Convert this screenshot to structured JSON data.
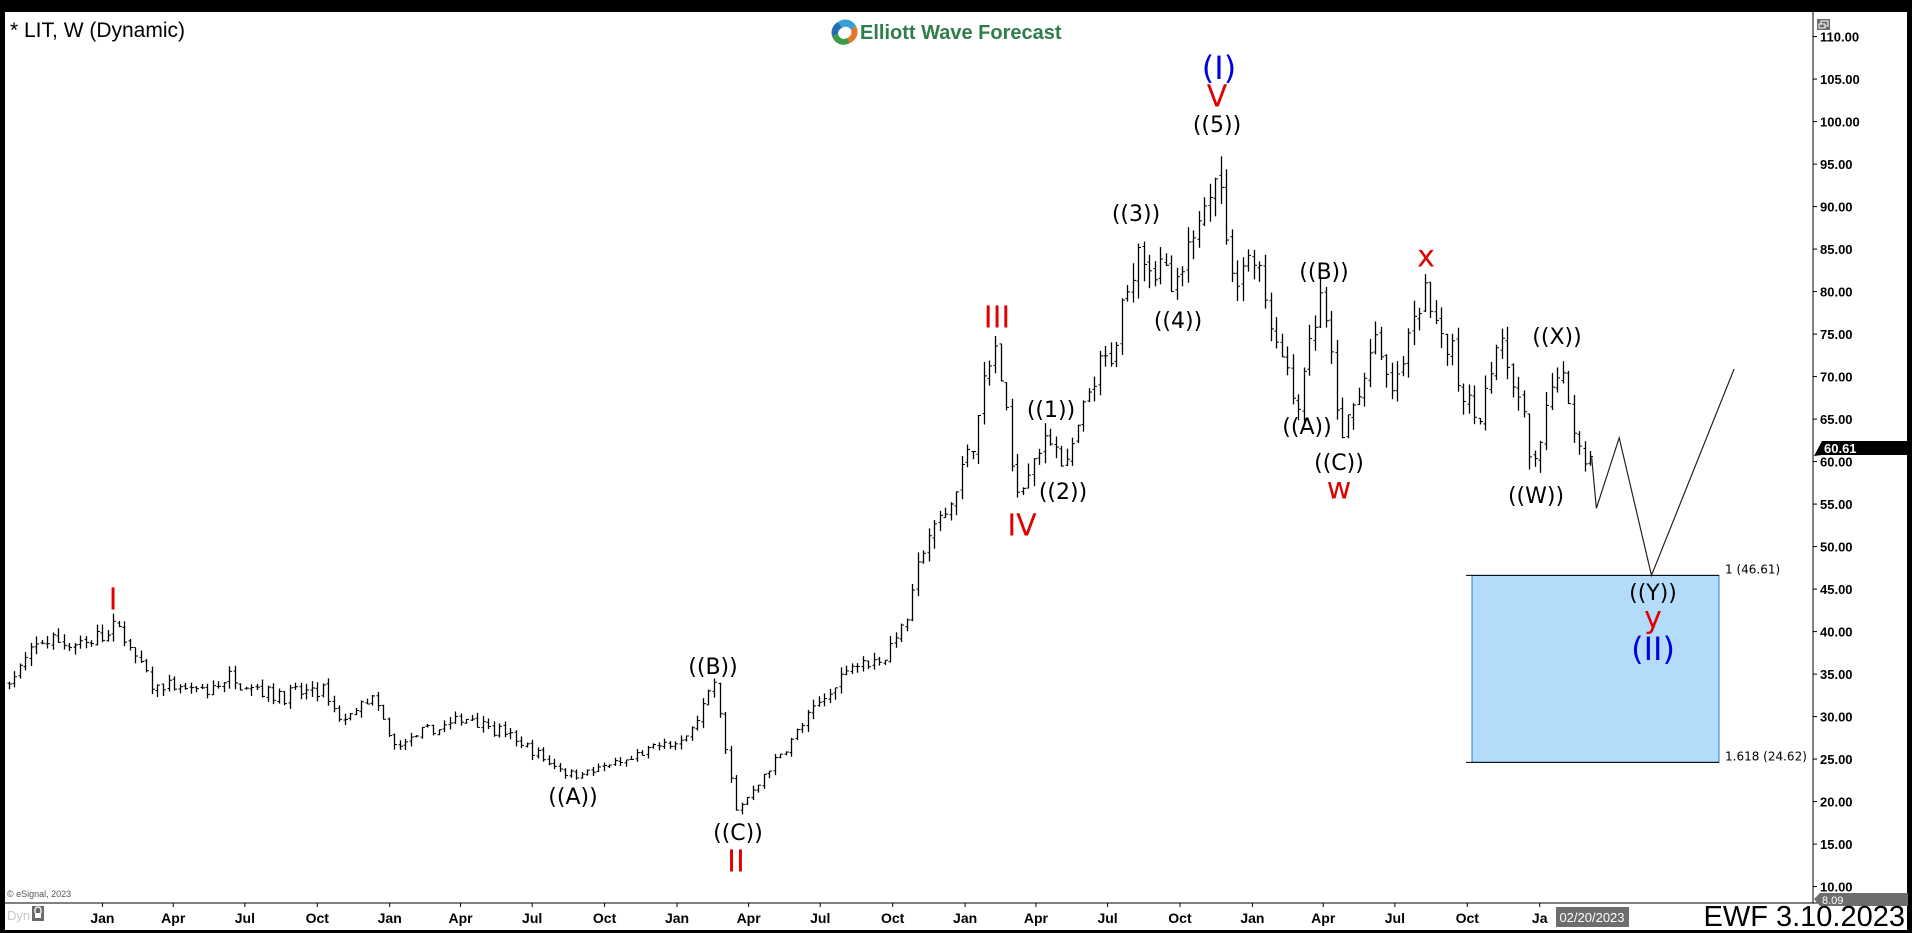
{
  "header": {
    "title": "* LIT, W (Dynamic)",
    "logo_text": "Elliott Wave Forecast"
  },
  "footer": {
    "copyright": "© eSignal, 2023",
    "dyn_label": "Dyn",
    "stamp": "EWF 3.10.2023",
    "cursor_date": "02/20/2023"
  },
  "price_tags": {
    "last": "60.61",
    "low": "8.09"
  },
  "colors": {
    "wave_black": "#000000",
    "wave_red": "#e00000",
    "wave_blue": "#0000e0",
    "target_box": "#b3dcfb",
    "target_box_border": "#2b7fc4",
    "last_price_tag": "#000000",
    "low_price_tag": "#6d6d6d"
  },
  "chart_data": {
    "type": "ohlc",
    "symbol": "LIT",
    "interval": "Weekly",
    "ylim": [
      8,
      112
    ],
    "y_ticks": [
      "110.00",
      "105.00",
      "100.00",
      "95.00",
      "90.00",
      "85.00",
      "80.00",
      "75.00",
      "70.00",
      "65.00",
      "60.00",
      "55.00",
      "50.00",
      "45.00",
      "40.00",
      "35.00",
      "30.00",
      "25.00",
      "20.00",
      "15.00",
      "10.00"
    ],
    "x_ticks": [
      "Jan",
      "Apr",
      "Jul",
      "Oct",
      "Jan",
      "Apr",
      "Jul",
      "Oct",
      "Jan",
      "Apr",
      "Jul",
      "Oct",
      "Jan",
      "Apr",
      "Jul",
      "Oct",
      "Jan",
      "Apr",
      "Jul",
      "Oct",
      "Ja"
    ],
    "x_tick_dates": [
      "2018-01-01",
      "2018-04-01",
      "2018-07-01",
      "2018-10-01",
      "2019-01-01",
      "2019-04-01",
      "2019-07-01",
      "2019-10-01",
      "2020-01-01",
      "2020-04-01",
      "2020-07-01",
      "2020-10-01",
      "2021-01-01",
      "2021-04-01",
      "2021-07-01",
      "2021-10-01",
      "2022-01-01",
      "2022-04-01",
      "2022-07-01",
      "2022-10-01",
      "2023-01-01"
    ],
    "price_path": [
      [
        "2017-09-04",
        34
      ],
      [
        "2017-10-16",
        39
      ],
      [
        "2017-12-11",
        38.5
      ],
      [
        "2018-01-22",
        40.5
      ],
      [
        "2018-03-05",
        33.5
      ],
      [
        "2018-05-14",
        33
      ],
      [
        "2018-06-11",
        34.5
      ],
      [
        "2018-08-13",
        32.5
      ],
      [
        "2018-10-08",
        33
      ],
      [
        "2018-10-29",
        29.5
      ],
      [
        "2018-12-10",
        32
      ],
      [
        "2019-01-07",
        26.5
      ],
      [
        "2019-02-25",
        28.5
      ],
      [
        "2019-04-15",
        30
      ],
      [
        "2019-06-03",
        27.5
      ],
      [
        "2019-07-15",
        25
      ],
      [
        "2019-08-19",
        23.2
      ],
      [
        "2019-10-28",
        24.5
      ],
      [
        "2019-12-16",
        27
      ],
      [
        "2020-01-06",
        26.5
      ],
      [
        "2020-02-17",
        33.5
      ],
      [
        "2020-03-16",
        18.8
      ],
      [
        "2020-06-08",
        29
      ],
      [
        "2020-07-13",
        33
      ],
      [
        "2020-08-10",
        36.5
      ],
      [
        "2020-09-21",
        37
      ],
      [
        "2020-10-19",
        42
      ],
      [
        "2020-11-09",
        50
      ],
      [
        "2020-12-14",
        55
      ],
      [
        "2021-01-11",
        63
      ],
      [
        "2021-02-08",
        73.5
      ],
      [
        "2021-03-08",
        56.5
      ],
      [
        "2021-04-19",
        63.5
      ],
      [
        "2021-05-10",
        59
      ],
      [
        "2021-06-14",
        70
      ],
      [
        "2021-07-05",
        72
      ],
      [
        "2021-08-09",
        86
      ],
      [
        "2021-09-27",
        79.5
      ],
      [
        "2021-11-15",
        95.5
      ],
      [
        "2021-12-06",
        82
      ],
      [
        "2022-01-03",
        84.5
      ],
      [
        "2022-02-07",
        72
      ],
      [
        "2022-02-28",
        67
      ],
      [
        "2022-03-28",
        79.5
      ],
      [
        "2022-04-25",
        62.5
      ],
      [
        "2022-06-06",
        74
      ],
      [
        "2022-06-27",
        68
      ],
      [
        "2022-08-08",
        81
      ],
      [
        "2022-09-26",
        68
      ],
      [
        "2022-10-17",
        64.5
      ],
      [
        "2022-11-07",
        74
      ],
      [
        "2022-12-05",
        67
      ],
      [
        "2022-12-27",
        58.5
      ],
      [
        "2023-01-23",
        72
      ],
      [
        "2023-02-20",
        62
      ],
      [
        "2023-03-06",
        60.61
      ]
    ],
    "last_price": 60.61,
    "projection": [
      [
        "2023-03-08",
        60.5
      ],
      [
        "2023-03-14",
        54.5
      ],
      [
        "2023-04-12",
        62.8
      ],
      [
        "2023-05-23",
        46.61
      ],
      [
        "2023-09-05",
        70.9
      ]
    ],
    "target_zone": {
      "from_date": "2023-01-01",
      "to_date": "2023-09-20",
      "top": 46.61,
      "bottom": 24.62,
      "top_label": "1 (46.61)",
      "bottom_label": "1.618 (24.62)"
    },
    "wave_labels": [
      {
        "text": "I",
        "color": "red"
      },
      {
        "text": "((A))",
        "color": "black"
      },
      {
        "text": "((B))",
        "color": "black"
      },
      {
        "text": "((C))",
        "color": "black"
      },
      {
        "text": "II",
        "color": "red"
      },
      {
        "text": "III",
        "color": "red"
      },
      {
        "text": "IV",
        "color": "red"
      },
      {
        "text": "((1))",
        "color": "black"
      },
      {
        "text": "((2))",
        "color": "black"
      },
      {
        "text": "((3))",
        "color": "black"
      },
      {
        "text": "((4))",
        "color": "black"
      },
      {
        "text": "((5))",
        "color": "black"
      },
      {
        "text": "V",
        "color": "red"
      },
      {
        "text": "(I)",
        "color": "blue"
      },
      {
        "text": "((A))",
        "color": "black"
      },
      {
        "text": "((B))",
        "color": "black"
      },
      {
        "text": "((C))",
        "color": "black"
      },
      {
        "text": "w",
        "color": "red"
      },
      {
        "text": "x",
        "color": "red"
      },
      {
        "text": "((X))",
        "color": "black"
      },
      {
        "text": "((W))",
        "color": "black"
      },
      {
        "text": "((Y))",
        "color": "black"
      },
      {
        "text": "y",
        "color": "red"
      },
      {
        "text": "(II)",
        "color": "blue"
      }
    ]
  }
}
